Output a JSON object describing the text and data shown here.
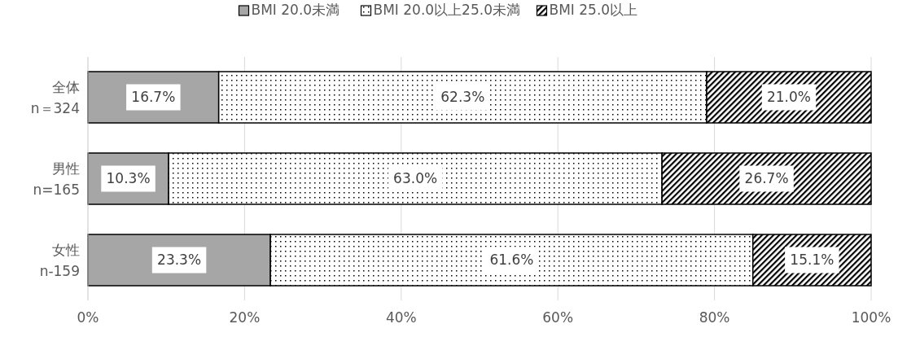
{
  "chart_data": {
    "type": "bar",
    "orientation": "horizontal",
    "stacked": true,
    "categories": [
      "全体\nn＝324",
      "男性\nn=165",
      "女性\nn-159"
    ],
    "series": [
      {
        "name": "BMI 20.0未満",
        "color": "#a6a6a6",
        "values": [
          16.7,
          10.3,
          23.3
        ],
        "value_labels": [
          "16.7%",
          "10.3%",
          "23.3%"
        ]
      },
      {
        "name": "BMI 20.0以上25.0未満",
        "color": "#000000",
        "values": [
          62.3,
          63.0,
          61.6
        ],
        "value_labels": [
          "62.3%",
          "63.0%",
          "61.6%"
        ]
      },
      {
        "name": "BMI 25.0以上",
        "color": "#000000",
        "values": [
          21.0,
          26.7,
          15.1
        ],
        "value_labels": [
          "21.0%",
          "26.7%",
          "15.1%"
        ]
      }
    ],
    "xlim": [
      0,
      100
    ],
    "xticks": [
      {
        "value": 0,
        "label": "0%"
      },
      {
        "value": 20,
        "label": "20%"
      },
      {
        "value": 40,
        "label": "40%"
      },
      {
        "value": 60,
        "label": "60%"
      },
      {
        "value": 80,
        "label": "80%"
      },
      {
        "value": 100,
        "label": "100%"
      }
    ],
    "grid": "x",
    "legend": "top"
  }
}
